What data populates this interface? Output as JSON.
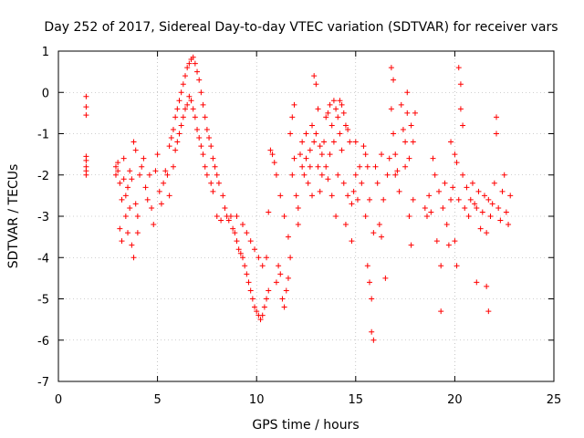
{
  "chart_data": {
    "type": "scatter",
    "title": "Day 252 of 2017, Sidereal Day-to-day VTEC variation (SDTVAR) for receiver vars",
    "xlabel": "GPS time / hours",
    "ylabel": "SDTVAR / TECUs",
    "xlim": [
      0,
      25
    ],
    "ylim": [
      -7,
      1
    ],
    "xticks": [
      0,
      5,
      10,
      15,
      20,
      25
    ],
    "yticks": [
      1,
      0,
      -1,
      -2,
      -3,
      -4,
      -5,
      -6,
      -7
    ],
    "grid": true,
    "marker": "+",
    "color": "#ff0000",
    "series": [
      {
        "name": "SDTVAR",
        "points": [
          [
            1.4,
            -0.1
          ],
          [
            1.4,
            -0.35
          ],
          [
            1.4,
            -0.55
          ],
          [
            1.4,
            -1.55
          ],
          [
            1.4,
            -1.65
          ],
          [
            1.4,
            -1.8
          ],
          [
            1.4,
            -1.9
          ],
          [
            1.4,
            -2.0
          ],
          [
            2.9,
            -1.8
          ],
          [
            2.9,
            -2.0
          ],
          [
            3.0,
            -1.7
          ],
          [
            3.0,
            -1.9
          ],
          [
            3.1,
            -2.2
          ],
          [
            3.1,
            -3.3
          ],
          [
            3.2,
            -3.6
          ],
          [
            3.2,
            -2.6
          ],
          [
            3.3,
            -1.6
          ],
          [
            3.3,
            -2.1
          ],
          [
            3.4,
            -2.5
          ],
          [
            3.4,
            -3.0
          ],
          [
            3.5,
            -2.3
          ],
          [
            3.5,
            -3.4
          ],
          [
            3.6,
            -2.8
          ],
          [
            3.6,
            -1.9
          ],
          [
            3.7,
            -2.1
          ],
          [
            3.7,
            -3.7
          ],
          [
            3.8,
            -4.0
          ],
          [
            3.8,
            -1.2
          ],
          [
            3.9,
            -1.4
          ],
          [
            3.9,
            -2.7
          ],
          [
            4.0,
            -3.0
          ],
          [
            4.0,
            -3.4
          ],
          [
            4.1,
            -2.0
          ],
          [
            4.2,
            -1.8
          ],
          [
            4.3,
            -1.6
          ],
          [
            4.4,
            -2.3
          ],
          [
            4.5,
            -2.6
          ],
          [
            4.6,
            -2.0
          ],
          [
            4.7,
            -2.8
          ],
          [
            4.8,
            -3.2
          ],
          [
            4.9,
            -1.9
          ],
          [
            5.0,
            -1.5
          ],
          [
            5.1,
            -2.4
          ],
          [
            5.2,
            -2.7
          ],
          [
            5.3,
            -2.2
          ],
          [
            5.4,
            -1.9
          ],
          [
            5.5,
            -2.0
          ],
          [
            5.6,
            -2.5
          ],
          [
            5.6,
            -1.3
          ],
          [
            5.7,
            -1.1
          ],
          [
            5.8,
            -0.9
          ],
          [
            5.8,
            -1.8
          ],
          [
            5.9,
            -0.6
          ],
          [
            5.9,
            -1.4
          ],
          [
            6.0,
            -0.4
          ],
          [
            6.0,
            -1.2
          ],
          [
            6.1,
            -0.2
          ],
          [
            6.1,
            -1.0
          ],
          [
            6.2,
            0.0
          ],
          [
            6.2,
            -0.8
          ],
          [
            6.3,
            0.2
          ],
          [
            6.3,
            -0.6
          ],
          [
            6.4,
            0.4
          ],
          [
            6.4,
            -0.4
          ],
          [
            6.5,
            0.6
          ],
          [
            6.5,
            -0.3
          ],
          [
            6.6,
            0.7
          ],
          [
            6.6,
            -0.1
          ],
          [
            6.7,
            0.8
          ],
          [
            6.7,
            -0.2
          ],
          [
            6.8,
            0.85
          ],
          [
            6.8,
            -0.4
          ],
          [
            6.9,
            0.7
          ],
          [
            6.9,
            -0.6
          ],
          [
            7.0,
            0.5
          ],
          [
            7.0,
            -0.9
          ],
          [
            7.1,
            0.3
          ],
          [
            7.1,
            -1.1
          ],
          [
            7.2,
            0.0
          ],
          [
            7.2,
            -1.3
          ],
          [
            7.3,
            -0.3
          ],
          [
            7.3,
            -1.5
          ],
          [
            7.4,
            -0.6
          ],
          [
            7.4,
            -1.8
          ],
          [
            7.5,
            -0.9
          ],
          [
            7.5,
            -2.0
          ],
          [
            7.6,
            -1.1
          ],
          [
            7.7,
            -1.3
          ],
          [
            7.7,
            -2.2
          ],
          [
            7.8,
            -1.6
          ],
          [
            7.8,
            -2.4
          ],
          [
            7.9,
            -1.8
          ],
          [
            8.0,
            -3.0
          ],
          [
            8.0,
            -2.0
          ],
          [
            8.1,
            -2.2
          ],
          [
            8.2,
            -3.1
          ],
          [
            8.3,
            -2.5
          ],
          [
            8.4,
            -2.8
          ],
          [
            8.5,
            -3.0
          ],
          [
            8.6,
            -3.1
          ],
          [
            8.7,
            -3.0
          ],
          [
            8.8,
            -3.3
          ],
          [
            8.9,
            -3.4
          ],
          [
            9.0,
            -3.6
          ],
          [
            9.0,
            -3.0
          ],
          [
            9.1,
            -3.8
          ],
          [
            9.2,
            -3.9
          ],
          [
            9.3,
            -4.0
          ],
          [
            9.3,
            -3.2
          ],
          [
            9.4,
            -4.2
          ],
          [
            9.5,
            -4.4
          ],
          [
            9.5,
            -3.4
          ],
          [
            9.6,
            -4.6
          ],
          [
            9.7,
            -4.8
          ],
          [
            9.7,
            -3.6
          ],
          [
            9.8,
            -5.0
          ],
          [
            9.9,
            -5.2
          ],
          [
            9.9,
            -3.8
          ],
          [
            10.0,
            -5.3
          ],
          [
            10.1,
            -5.4
          ],
          [
            10.1,
            -4.0
          ],
          [
            10.2,
            -5.5
          ],
          [
            10.3,
            -5.4
          ],
          [
            10.3,
            -4.2
          ],
          [
            10.4,
            -5.2
          ],
          [
            10.5,
            -5.0
          ],
          [
            10.5,
            -4.0
          ],
          [
            10.6,
            -4.8
          ],
          [
            10.6,
            -2.9
          ],
          [
            10.7,
            -1.4
          ],
          [
            10.8,
            -1.5
          ],
          [
            10.9,
            -1.7
          ],
          [
            11.0,
            -4.6
          ],
          [
            11.0,
            -2.0
          ],
          [
            11.1,
            -4.2
          ],
          [
            11.2,
            -4.4
          ],
          [
            11.2,
            -2.5
          ],
          [
            11.3,
            -5.0
          ],
          [
            11.4,
            -5.2
          ],
          [
            11.4,
            -3.0
          ],
          [
            11.5,
            -4.8
          ],
          [
            11.6,
            -4.5
          ],
          [
            11.6,
            -3.5
          ],
          [
            11.7,
            -4.0
          ],
          [
            11.7,
            -1.0
          ],
          [
            11.8,
            -2.0
          ],
          [
            11.8,
            -0.6
          ],
          [
            11.9,
            -1.6
          ],
          [
            11.9,
            -0.3
          ],
          [
            12.0,
            -2.5
          ],
          [
            12.1,
            -2.8
          ],
          [
            12.1,
            -3.2
          ],
          [
            12.2,
            -1.5
          ],
          [
            12.3,
            -1.8
          ],
          [
            12.3,
            -1.2
          ],
          [
            12.4,
            -2.0
          ],
          [
            12.5,
            -1.6
          ],
          [
            12.5,
            -1.0
          ],
          [
            12.6,
            -2.2
          ],
          [
            12.7,
            -1.4
          ],
          [
            12.7,
            -1.8
          ],
          [
            12.8,
            -0.8
          ],
          [
            12.8,
            -2.5
          ],
          [
            12.9,
            -1.2
          ],
          [
            12.9,
            0.4
          ],
          [
            13.0,
            -1.0
          ],
          [
            13.0,
            0.2
          ],
          [
            13.1,
            -1.8
          ],
          [
            13.1,
            -0.4
          ],
          [
            13.2,
            -1.3
          ],
          [
            13.2,
            -2.4
          ],
          [
            13.3,
            -1.5
          ],
          [
            13.3,
            -2.0
          ],
          [
            13.4,
            -1.2
          ],
          [
            13.5,
            -1.8
          ],
          [
            13.5,
            -0.6
          ],
          [
            13.6,
            -2.1
          ],
          [
            13.6,
            -0.5
          ],
          [
            13.7,
            -1.5
          ],
          [
            13.7,
            -0.3
          ],
          [
            13.8,
            -0.8
          ],
          [
            13.8,
            -2.5
          ],
          [
            13.9,
            -0.2
          ],
          [
            13.9,
            -1.2
          ],
          [
            14.0,
            -0.4
          ],
          [
            14.0,
            -3.0
          ],
          [
            14.1,
            -0.6
          ],
          [
            14.1,
            -2.0
          ],
          [
            14.2,
            -1.0
          ],
          [
            14.2,
            -0.2
          ],
          [
            14.3,
            -0.3
          ],
          [
            14.3,
            -1.4
          ],
          [
            14.4,
            -0.5
          ],
          [
            14.4,
            -2.2
          ],
          [
            14.5,
            -0.8
          ],
          [
            14.5,
            -3.2
          ],
          [
            14.6,
            -0.9
          ],
          [
            14.6,
            -2.5
          ],
          [
            14.7,
            -1.2
          ],
          [
            14.8,
            -2.7
          ],
          [
            14.8,
            -3.6
          ],
          [
            14.9,
            -2.4
          ],
          [
            15.0,
            -2.0
          ],
          [
            15.0,
            -1.2
          ],
          [
            15.1,
            -2.6
          ],
          [
            15.2,
            -1.8
          ],
          [
            15.3,
            -2.2
          ],
          [
            15.4,
            -1.3
          ],
          [
            15.5,
            -1.5
          ],
          [
            15.5,
            -3.0
          ],
          [
            15.6,
            -1.8
          ],
          [
            15.6,
            -4.2
          ],
          [
            15.7,
            -4.6
          ],
          [
            15.7,
            -2.6
          ],
          [
            15.8,
            -5.0
          ],
          [
            15.8,
            -5.8
          ],
          [
            15.9,
            -6.0
          ],
          [
            15.9,
            -3.4
          ],
          [
            16.0,
            -1.8
          ],
          [
            16.1,
            -2.2
          ],
          [
            16.2,
            -3.2
          ],
          [
            16.3,
            -3.5
          ],
          [
            16.3,
            -1.5
          ],
          [
            16.4,
            -2.6
          ],
          [
            16.5,
            -4.5
          ],
          [
            16.6,
            -2.0
          ],
          [
            16.7,
            -1.6
          ],
          [
            16.8,
            -0.4
          ],
          [
            16.8,
            0.6
          ],
          [
            16.9,
            -1.0
          ],
          [
            16.9,
            0.3
          ],
          [
            17.0,
            -1.5
          ],
          [
            17.0,
            -2.0
          ],
          [
            17.1,
            -1.9
          ],
          [
            17.2,
            -2.4
          ],
          [
            17.3,
            -0.3
          ],
          [
            17.4,
            -0.9
          ],
          [
            17.5,
            -1.2
          ],
          [
            17.5,
            -1.8
          ],
          [
            17.6,
            -0.5
          ],
          [
            17.6,
            0.0
          ],
          [
            17.7,
            -1.6
          ],
          [
            17.7,
            -3.0
          ],
          [
            17.8,
            -0.8
          ],
          [
            17.8,
            -3.7
          ],
          [
            17.9,
            -1.2
          ],
          [
            17.9,
            -2.6
          ],
          [
            18.0,
            -0.5
          ],
          [
            18.5,
            -2.8
          ],
          [
            18.6,
            -3.0
          ],
          [
            18.7,
            -2.5
          ],
          [
            18.8,
            -2.9
          ],
          [
            18.9,
            -1.6
          ],
          [
            19.0,
            -2.0
          ],
          [
            19.1,
            -3.6
          ],
          [
            19.2,
            -2.4
          ],
          [
            19.3,
            -4.2
          ],
          [
            19.3,
            -5.3
          ],
          [
            19.4,
            -2.8
          ],
          [
            19.5,
            -2.2
          ],
          [
            19.6,
            -3.2
          ],
          [
            19.7,
            -3.7
          ],
          [
            19.8,
            -1.2
          ],
          [
            19.8,
            -2.6
          ],
          [
            19.9,
            -2.3
          ],
          [
            20.0,
            -1.5
          ],
          [
            20.0,
            -3.6
          ],
          [
            20.1,
            -1.7
          ],
          [
            20.1,
            -4.2
          ],
          [
            20.2,
            -2.6
          ],
          [
            20.2,
            0.6
          ],
          [
            20.3,
            0.2
          ],
          [
            20.3,
            -0.4
          ],
          [
            20.4,
            -0.8
          ],
          [
            20.4,
            -2.0
          ],
          [
            20.5,
            -2.8
          ],
          [
            20.6,
            -2.3
          ],
          [
            20.7,
            -3.0
          ],
          [
            20.8,
            -2.6
          ],
          [
            20.9,
            -2.2
          ],
          [
            21.0,
            -2.7
          ],
          [
            21.1,
            -2.8
          ],
          [
            21.1,
            -4.6
          ],
          [
            21.2,
            -2.4
          ],
          [
            21.3,
            -3.3
          ],
          [
            21.4,
            -2.9
          ],
          [
            21.5,
            -2.5
          ],
          [
            21.6,
            -3.4
          ],
          [
            21.6,
            -4.7
          ],
          [
            21.7,
            -2.6
          ],
          [
            21.7,
            -5.3
          ],
          [
            21.8,
            -3.0
          ],
          [
            21.9,
            -2.7
          ],
          [
            22.0,
            -2.2
          ],
          [
            22.1,
            -0.6
          ],
          [
            22.1,
            -1.0
          ],
          [
            22.2,
            -2.8
          ],
          [
            22.3,
            -3.1
          ],
          [
            22.4,
            -2.4
          ],
          [
            22.5,
            -2.0
          ],
          [
            22.6,
            -2.9
          ],
          [
            22.7,
            -3.2
          ],
          [
            22.8,
            -2.5
          ]
        ]
      }
    ]
  }
}
